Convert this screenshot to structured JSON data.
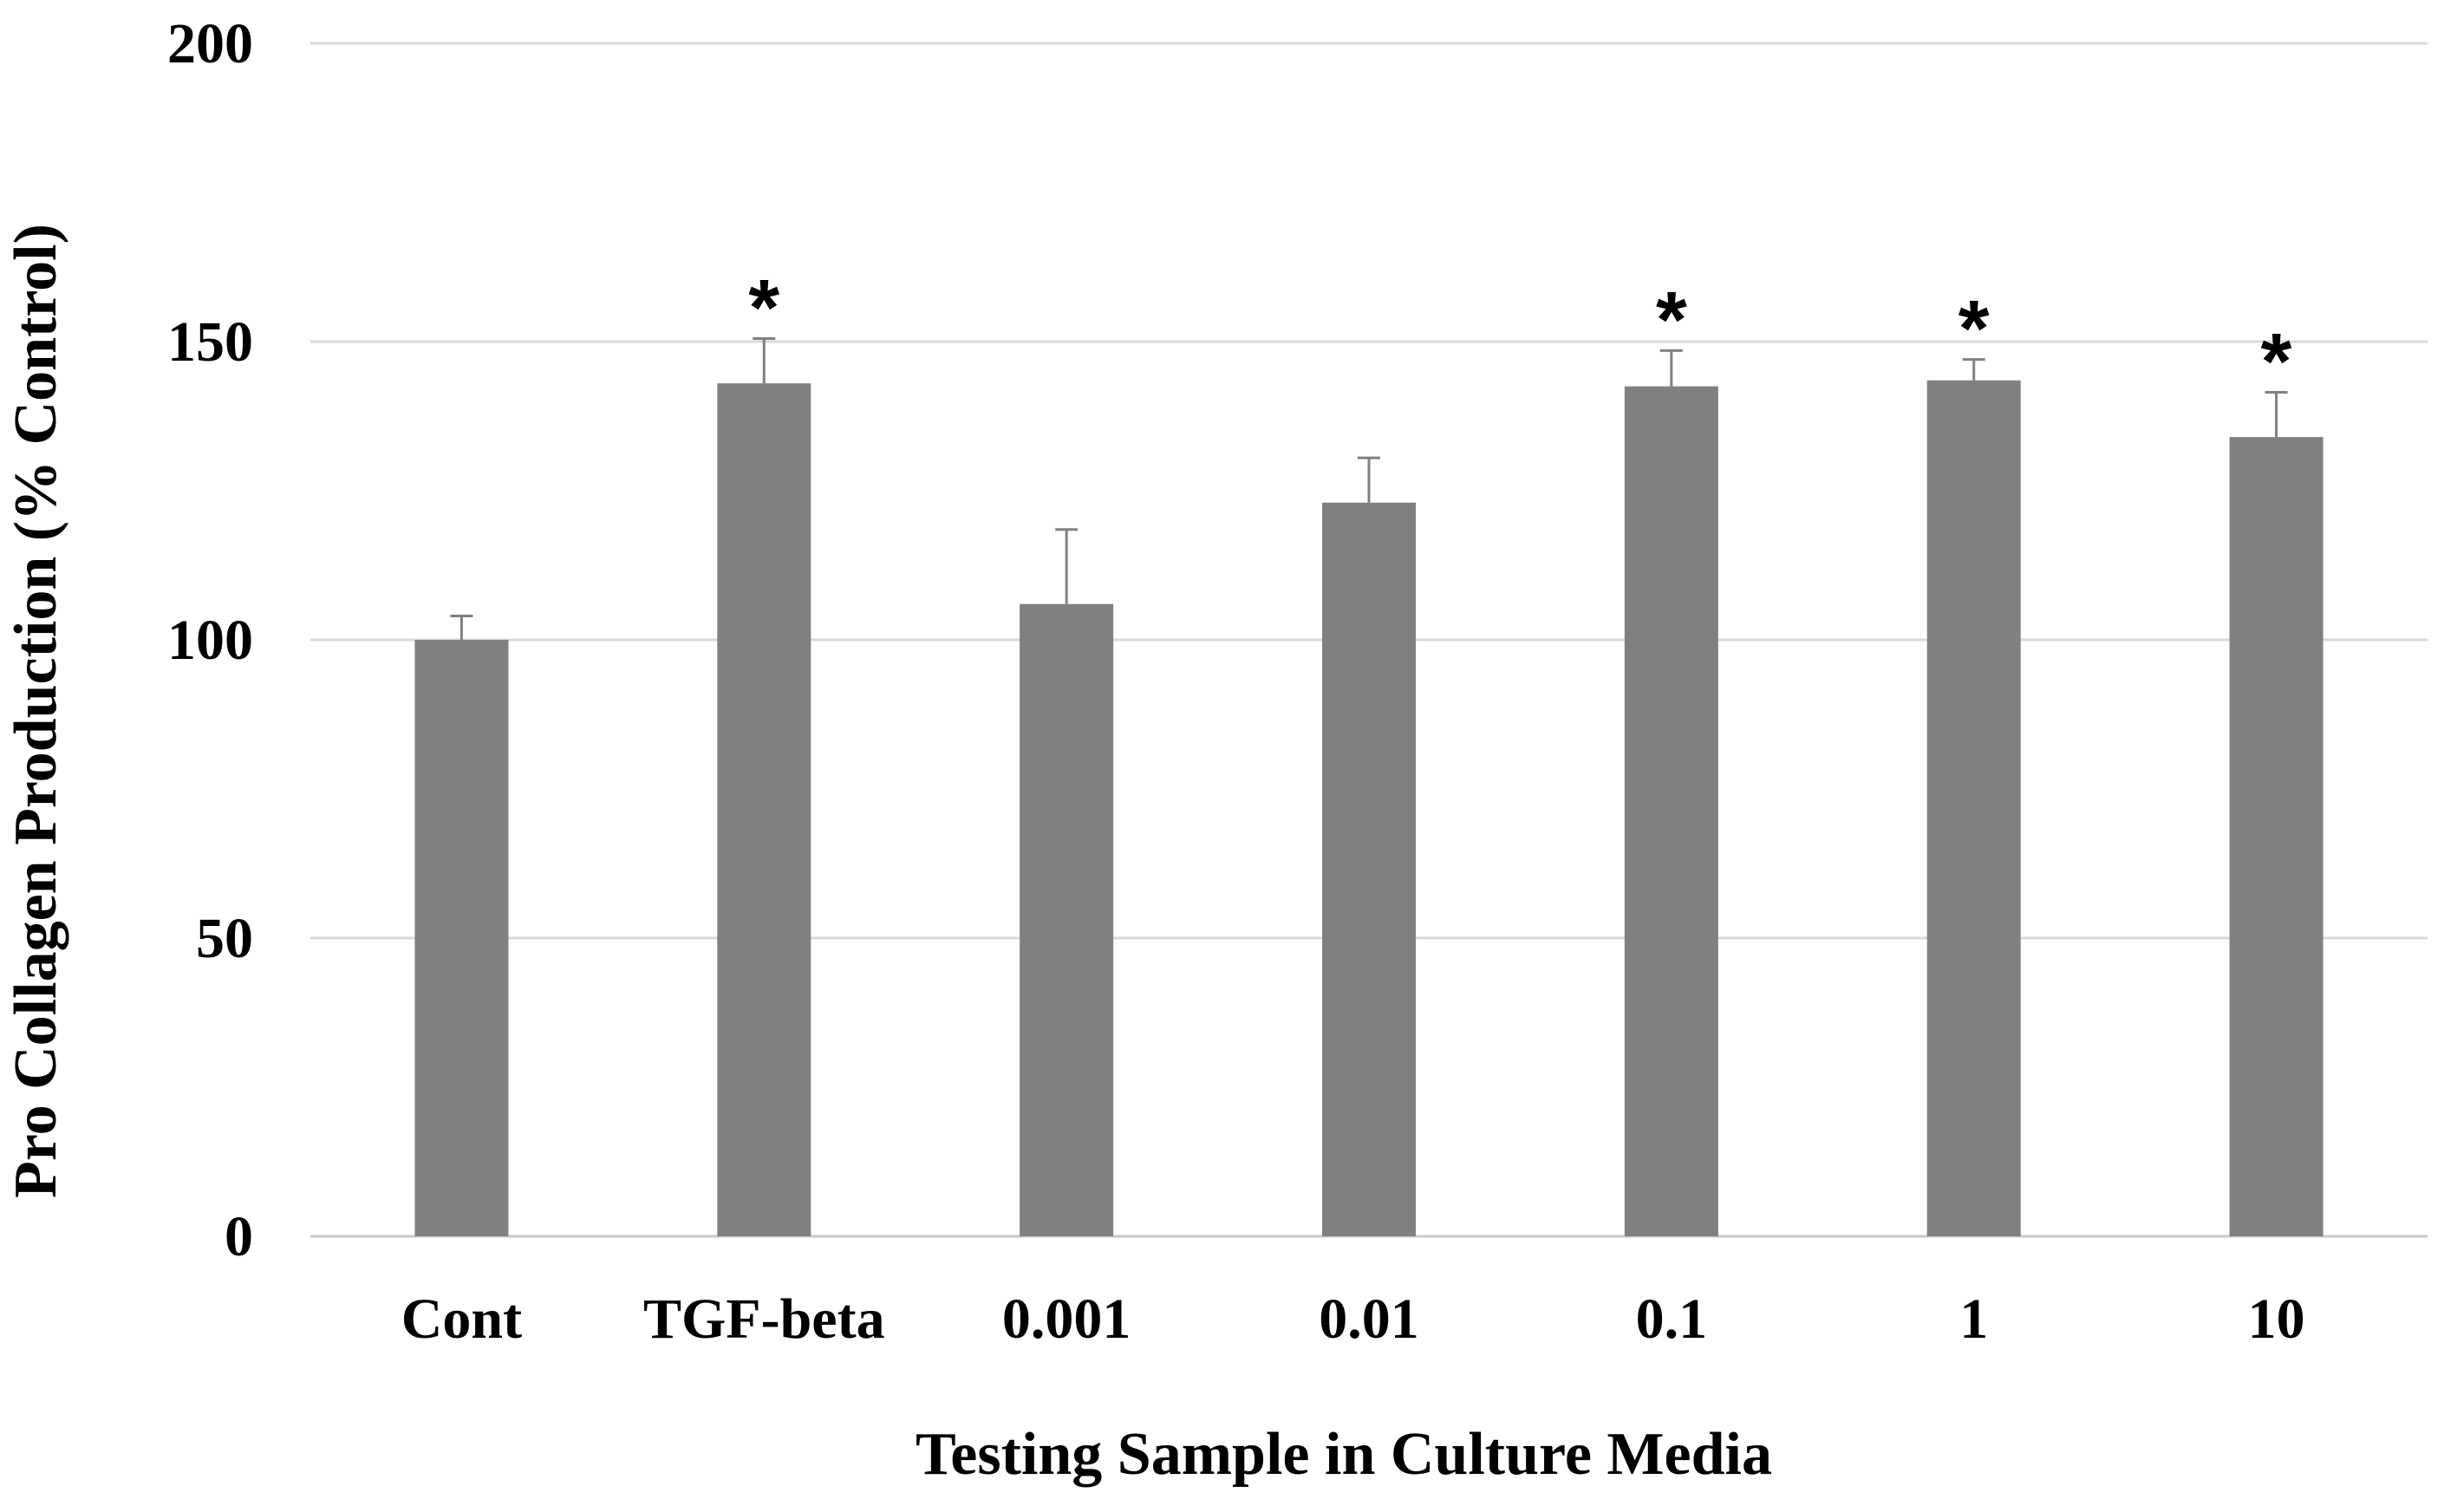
{
  "chart_data": {
    "type": "bar",
    "title": "",
    "xlabel": "Testing Sample in Culture Media",
    "ylabel": "Pro Collagen Production (% Control)",
    "ylim": [
      0,
      200
    ],
    "yticks": [
      0,
      50,
      100,
      150,
      200
    ],
    "grid": true,
    "categories": [
      "Cont",
      "TGF-beta",
      "0.001",
      "0.01",
      "0.1",
      "1",
      "10"
    ],
    "series": [
      {
        "name": "Pro Collagen Production",
        "values": [
          100,
          143,
          106,
          123,
          142.5,
          143.5,
          134
        ],
        "error": [
          4,
          7.5,
          12.5,
          7.5,
          6,
          3.5,
          7.5
        ],
        "significance": [
          "",
          "*",
          "",
          "",
          "*",
          "*",
          "*"
        ]
      }
    ],
    "colors": {
      "bar": "#808080",
      "grid": "#d9d9d9",
      "axis": "#c8c8c8",
      "error": "#808080",
      "text": "#000000"
    }
  }
}
